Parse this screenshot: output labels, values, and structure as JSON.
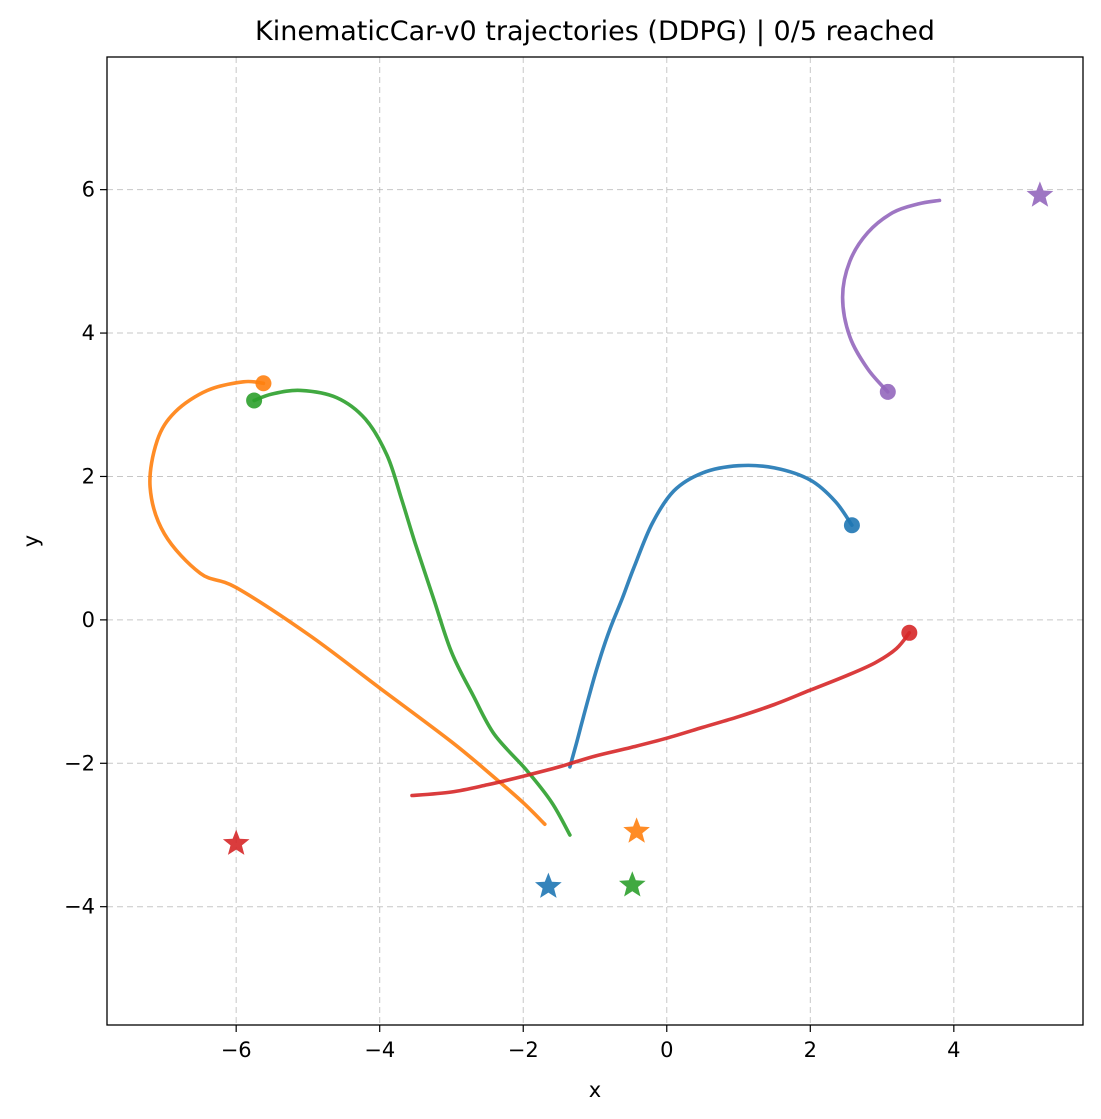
{
  "chart_data": {
    "type": "line",
    "title": "KinematicCar-v0 trajectories (DDPG) | 0/5 reached",
    "xlabel": "x",
    "ylabel": "y",
    "xlim": [
      -7.8,
      5.8
    ],
    "ylim": [
      -5.65,
      7.85
    ],
    "xticks": [
      -6,
      -4,
      -2,
      0,
      2,
      4
    ],
    "yticks": [
      -4,
      -2,
      0,
      2,
      4,
      6
    ],
    "xtick_labels": [
      "−6",
      "−4",
      "−2",
      "0",
      "2",
      "4"
    ],
    "ytick_labels": [
      "−4",
      "−2",
      "0",
      "2",
      "4",
      "6"
    ],
    "grid": true,
    "series": [
      {
        "color": "#1f77b4",
        "start": [
          2.58,
          1.32
        ],
        "goal": [
          -1.65,
          -3.72
        ],
        "points": [
          [
            -1.35,
            -2.05
          ],
          [
            -1.28,
            -1.8
          ],
          [
            -1.2,
            -1.5
          ],
          [
            -1.08,
            -1.05
          ],
          [
            -0.95,
            -0.6
          ],
          [
            -0.8,
            -0.15
          ],
          [
            -0.62,
            0.3
          ],
          [
            -0.45,
            0.75
          ],
          [
            -0.2,
            1.35
          ],
          [
            0.1,
            1.8
          ],
          [
            0.5,
            2.05
          ],
          [
            1.0,
            2.15
          ],
          [
            1.5,
            2.12
          ],
          [
            2.0,
            1.95
          ],
          [
            2.35,
            1.65
          ],
          [
            2.58,
            1.32
          ]
        ]
      },
      {
        "color": "#ff7f0e",
        "start": [
          -5.62,
          3.3
        ],
        "goal": [
          -0.42,
          -2.95
        ],
        "points": [
          [
            -1.7,
            -2.85
          ],
          [
            -2.0,
            -2.55
          ],
          [
            -2.4,
            -2.2
          ],
          [
            -3.0,
            -1.7
          ],
          [
            -4.0,
            -0.95
          ],
          [
            -5.0,
            -0.2
          ],
          [
            -6.0,
            0.45
          ],
          [
            -6.5,
            0.65
          ],
          [
            -7.0,
            1.2
          ],
          [
            -7.2,
            1.85
          ],
          [
            -7.1,
            2.5
          ],
          [
            -6.85,
            2.9
          ],
          [
            -6.4,
            3.2
          ],
          [
            -5.9,
            3.32
          ],
          [
            -5.62,
            3.3
          ]
        ]
      },
      {
        "color": "#2ca02c",
        "start": [
          -5.75,
          3.06
        ],
        "goal": [
          -0.48,
          -3.7
        ],
        "points": [
          [
            -1.35,
            -3.0
          ],
          [
            -1.6,
            -2.55
          ],
          [
            -1.95,
            -2.1
          ],
          [
            -2.4,
            -1.6
          ],
          [
            -2.7,
            -1.05
          ],
          [
            -3.0,
            -0.45
          ],
          [
            -3.25,
            0.3
          ],
          [
            -3.5,
            1.05
          ],
          [
            -3.7,
            1.7
          ],
          [
            -3.9,
            2.3
          ],
          [
            -4.2,
            2.8
          ],
          [
            -4.6,
            3.1
          ],
          [
            -5.1,
            3.2
          ],
          [
            -5.5,
            3.15
          ],
          [
            -5.75,
            3.06
          ]
        ]
      },
      {
        "color": "#d62728",
        "start": [
          3.38,
          -0.18
        ],
        "goal": [
          -6.0,
          -3.12
        ],
        "points": [
          [
            -3.55,
            -2.45
          ],
          [
            -3.0,
            -2.4
          ],
          [
            -2.5,
            -2.3
          ],
          [
            -2.0,
            -2.18
          ],
          [
            -1.5,
            -2.05
          ],
          [
            -1.0,
            -1.9
          ],
          [
            -0.5,
            -1.78
          ],
          [
            0.0,
            -1.65
          ],
          [
            0.5,
            -1.5
          ],
          [
            1.0,
            -1.35
          ],
          [
            1.5,
            -1.18
          ],
          [
            2.0,
            -0.98
          ],
          [
            2.5,
            -0.78
          ],
          [
            2.9,
            -0.6
          ],
          [
            3.2,
            -0.4
          ],
          [
            3.38,
            -0.18
          ]
        ]
      },
      {
        "color": "#9467bd",
        "start": [
          3.08,
          3.18
        ],
        "goal": [
          5.2,
          5.92
        ],
        "points": [
          [
            3.08,
            3.18
          ],
          [
            2.8,
            3.5
          ],
          [
            2.55,
            3.95
          ],
          [
            2.45,
            4.5
          ],
          [
            2.55,
            5.0
          ],
          [
            2.8,
            5.4
          ],
          [
            3.15,
            5.68
          ],
          [
            3.5,
            5.8
          ],
          [
            3.8,
            5.85
          ]
        ]
      }
    ]
  }
}
